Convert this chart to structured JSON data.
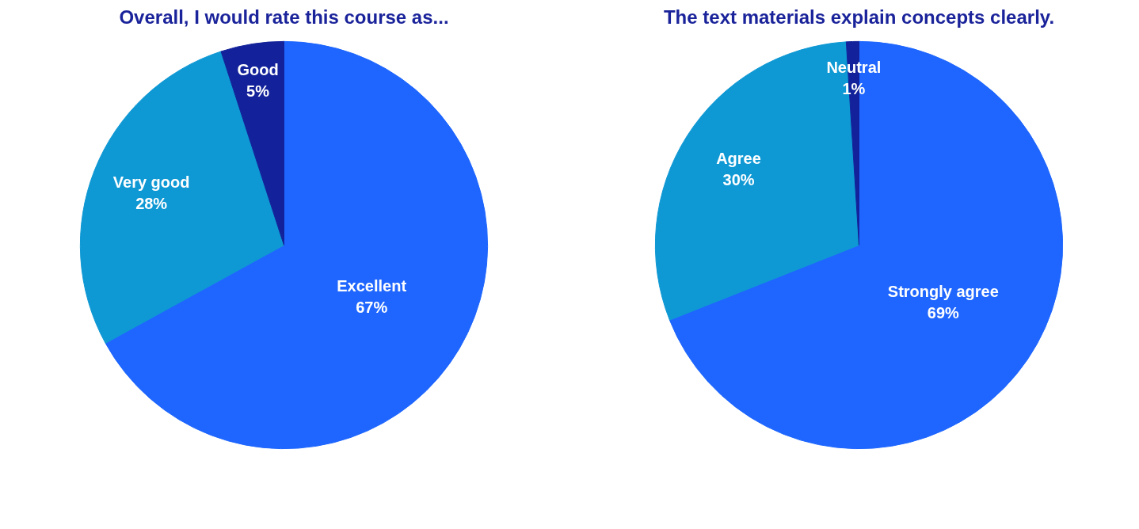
{
  "chart_data": [
    {
      "type": "pie",
      "title": "Overall, I would rate this course as...",
      "categories": [
        "Excellent",
        "Very good",
        "Good"
      ],
      "values": [
        67,
        28,
        5
      ],
      "colors": [
        "#1e66ff",
        "#0e98d4",
        "#13229a"
      ],
      "value_labels": [
        "67%",
        "28%",
        "5%"
      ]
    },
    {
      "type": "pie",
      "title": "The text materials explain concepts clearly.",
      "categories": [
        "Strongly agree",
        "Agree",
        "Neutral"
      ],
      "values": [
        69,
        30,
        1
      ],
      "colors": [
        "#1e66ff",
        "#0e98d4",
        "#13229a"
      ],
      "value_labels": [
        "69%",
        "30%",
        "1%"
      ]
    }
  ]
}
